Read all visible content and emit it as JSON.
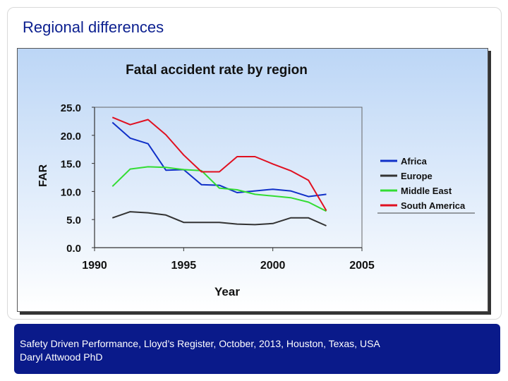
{
  "slide": {
    "title": "Regional differences"
  },
  "footer": {
    "line1": "Safety Driven Performance, Lloyd’s Register, October, 2013, Houston, Texas, USA",
    "line2": "Daryl Attwood PhD"
  },
  "colors": {
    "title": "#0b1f8f",
    "footer_bg": "#0a1a8a",
    "africa": "#1030c8",
    "europe": "#333333",
    "middle_east": "#33dd33",
    "south_america": "#e01020"
  },
  "chart_data": {
    "type": "line",
    "title": "Fatal accident rate by region",
    "xlabel": "Year",
    "ylabel": "FAR",
    "xlim": [
      1990,
      2005
    ],
    "ylim": [
      0,
      25
    ],
    "x_ticks": [
      "1990",
      "1995",
      "2000",
      "2005"
    ],
    "y_ticks": [
      "0.0",
      "5.0",
      "10.0",
      "15.0",
      "20.0",
      "25.0"
    ],
    "x_tick_values": [
      1990,
      1995,
      2000,
      2005
    ],
    "y_tick_values": [
      0,
      5,
      10,
      15,
      20,
      25
    ],
    "legend_position": "right",
    "x": [
      1991,
      1992,
      1993,
      1994,
      1995,
      1996,
      1997,
      1998,
      1999,
      2000,
      2001,
      2002,
      2003
    ],
    "series": [
      {
        "name": "Africa",
        "color": "#1030c8",
        "values": [
          22.3,
          19.5,
          18.5,
          13.8,
          13.9,
          11.2,
          11.1,
          9.8,
          10.1,
          10.4,
          10.1,
          9.1,
          9.5
        ]
      },
      {
        "name": "Europe",
        "color": "#333333",
        "values": [
          5.3,
          6.4,
          6.2,
          5.8,
          4.5,
          4.5,
          4.5,
          4.2,
          4.1,
          4.3,
          5.3,
          5.3,
          3.9
        ]
      },
      {
        "name": "Middle East",
        "color": "#33dd33",
        "values": [
          10.9,
          14.0,
          14.4,
          14.3,
          13.9,
          13.7,
          10.6,
          10.3,
          9.5,
          9.2,
          8.9,
          8.1,
          6.5
        ]
      },
      {
        "name": "South America",
        "color": "#e01020",
        "values": [
          23.2,
          21.9,
          22.8,
          20.1,
          16.5,
          13.5,
          13.5,
          16.2,
          16.2,
          14.9,
          13.7,
          12.0,
          6.6
        ]
      }
    ]
  }
}
